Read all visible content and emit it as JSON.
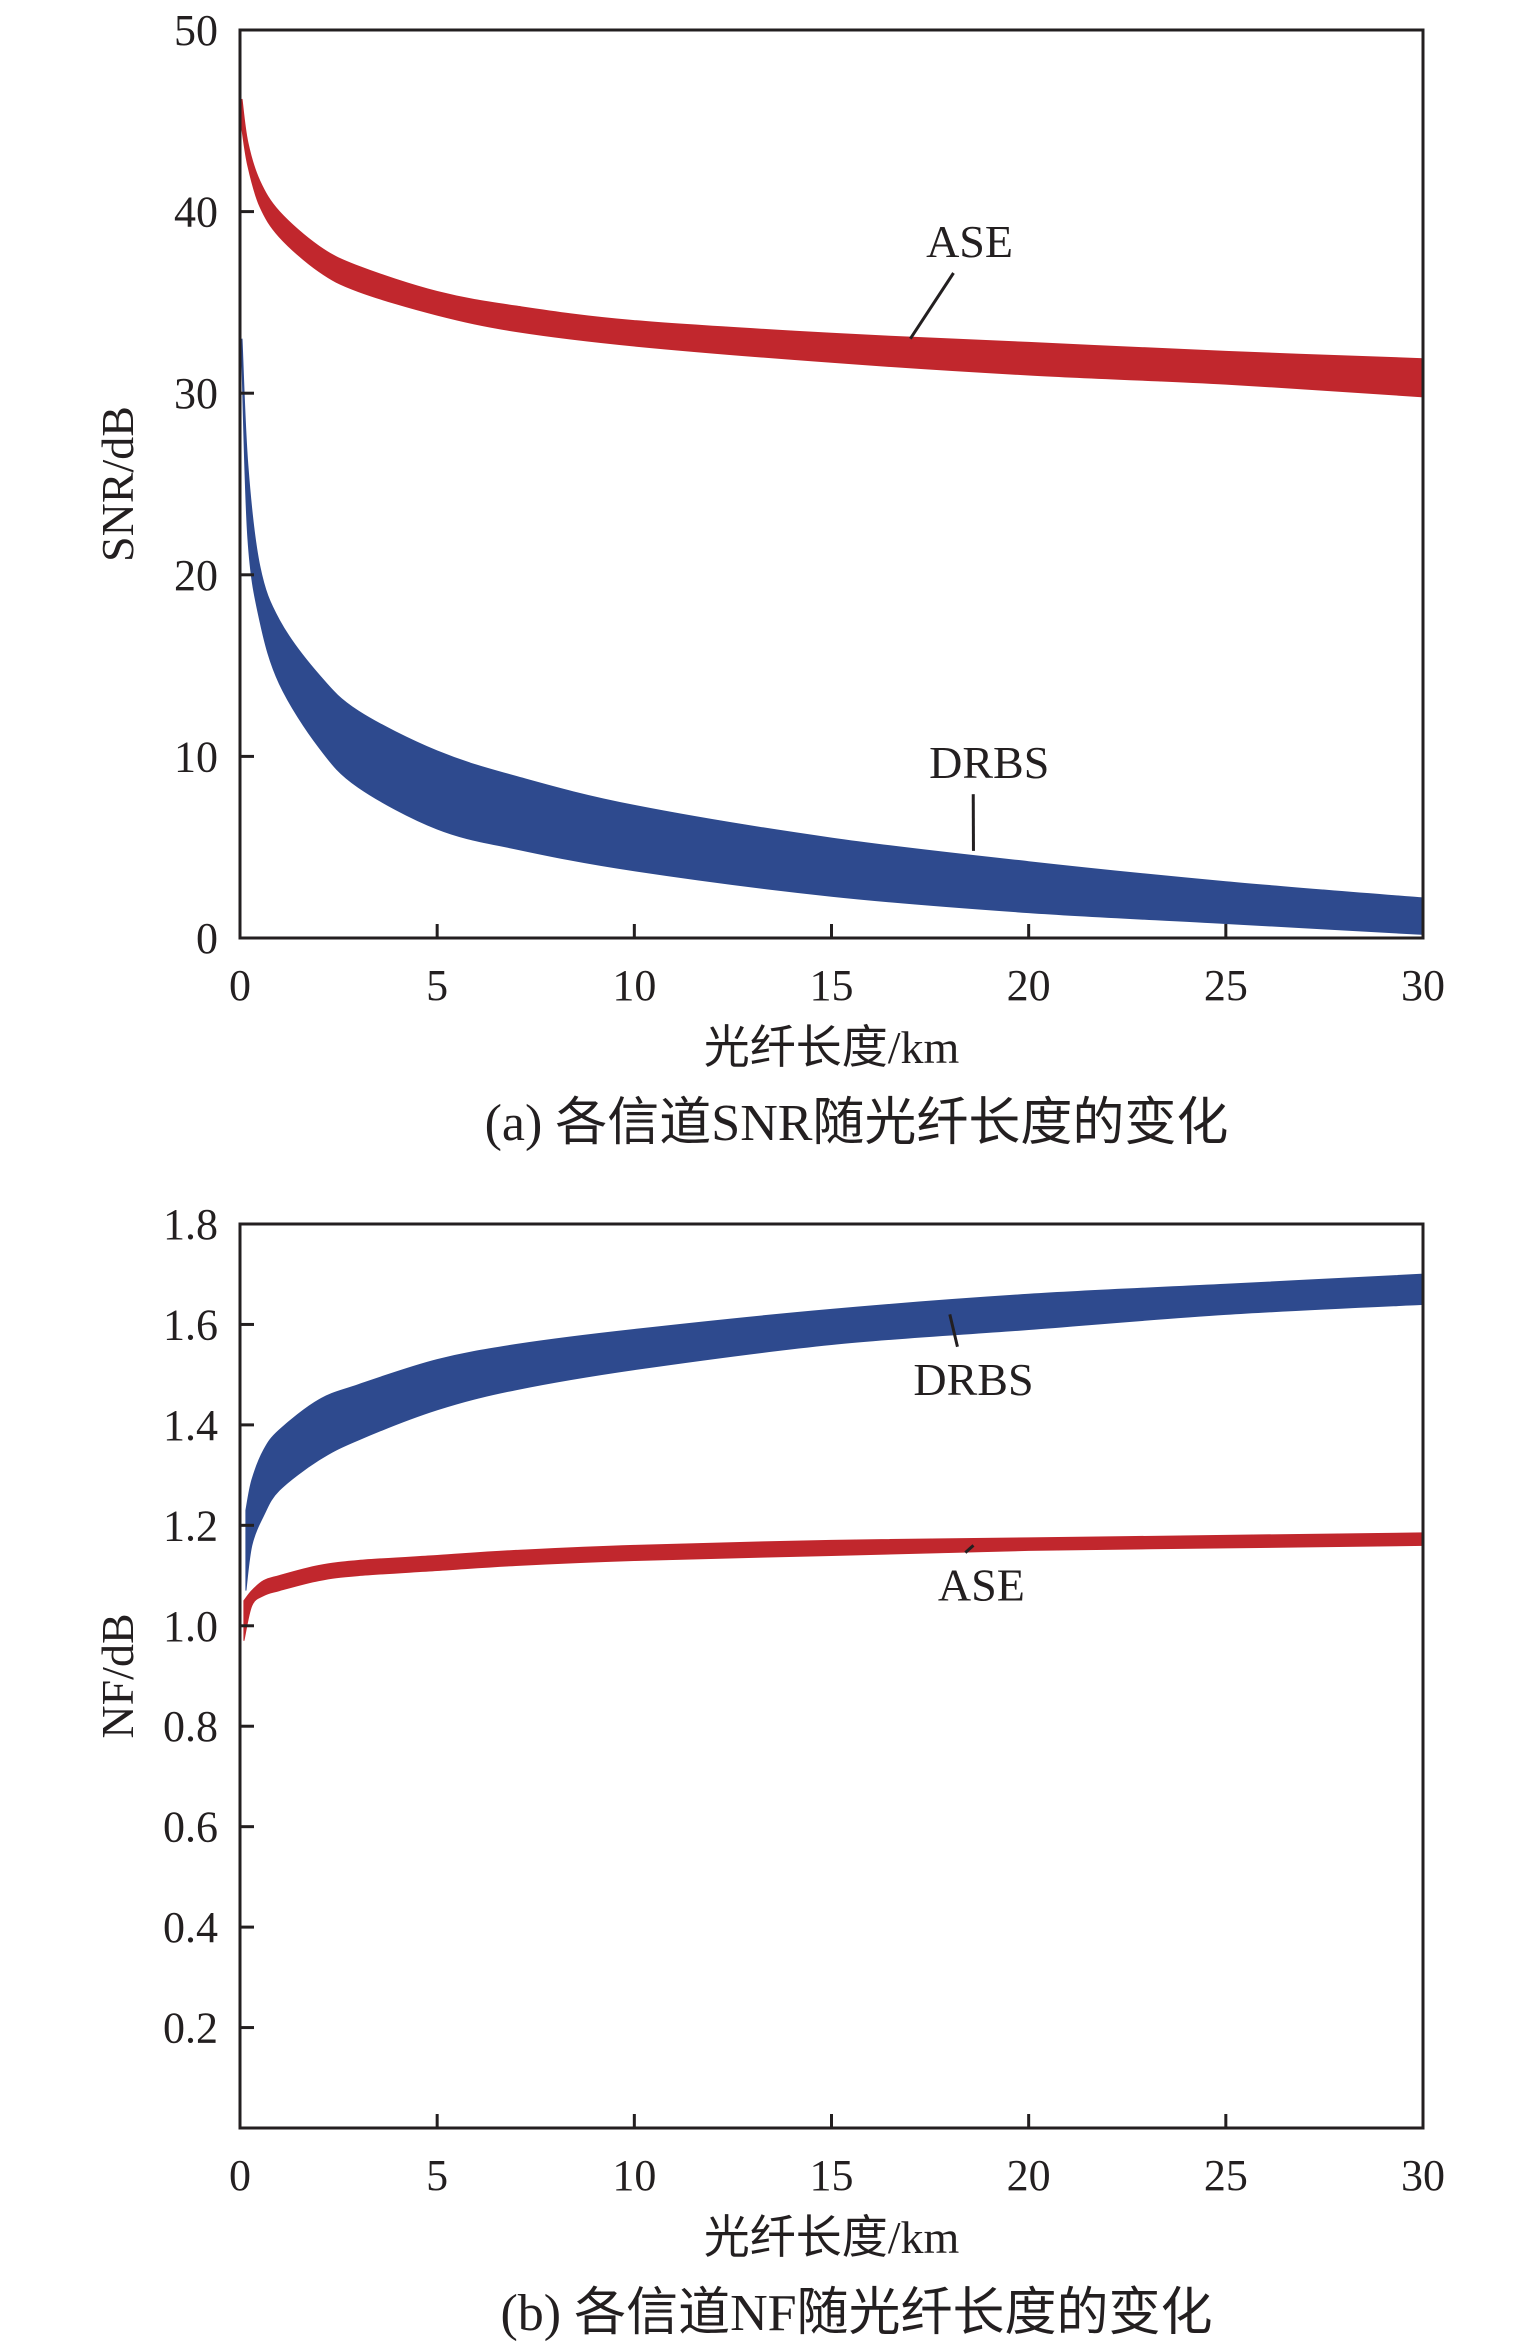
{
  "chart_data": [
    {
      "id": "snr",
      "type": "area",
      "caption": "(a) 各信道SNR随光纤长度的变化",
      "xlabel": "光纤长度/km",
      "ylabel": "SNR/dB",
      "xlim": [
        0,
        30
      ],
      "ylim": [
        0,
        50
      ],
      "xticks": [
        0,
        5,
        10,
        15,
        20,
        25,
        30
      ],
      "yticks": [
        0,
        10,
        20,
        30,
        40,
        50
      ],
      "ytick_labels": [
        "0",
        "10",
        "20",
        "30",
        "40",
        "50"
      ],
      "grid": false,
      "series": [
        {
          "name": "ASE",
          "color": "#c1272d",
          "x": [
            0.05,
            0.2,
            0.5,
            1,
            2,
            3,
            5,
            7,
            10,
            15,
            20,
            25,
            30
          ],
          "upper": [
            46.2,
            43.8,
            41.7,
            40.0,
            38.1,
            37.0,
            35.6,
            34.8,
            34.0,
            33.3,
            32.8,
            32.3,
            31.9
          ],
          "lower": [
            44.5,
            42.5,
            40.3,
            38.6,
            36.7,
            35.6,
            34.3,
            33.4,
            32.6,
            31.7,
            31.0,
            30.5,
            29.8
          ]
        },
        {
          "name": "DRBS",
          "color": "#2e4a8e",
          "x": [
            0.05,
            0.2,
            0.5,
            1,
            2,
            3,
            5,
            7,
            10,
            15,
            20,
            25,
            30
          ],
          "upper": [
            33.0,
            26.0,
            20.5,
            17.5,
            14.5,
            12.5,
            10.3,
            8.9,
            7.3,
            5.5,
            4.2,
            3.1,
            2.2
          ],
          "lower": [
            31.5,
            22.0,
            17.5,
            14.0,
            10.5,
            8.3,
            6.0,
            4.9,
            3.7,
            2.3,
            1.4,
            0.8,
            0.2
          ]
        }
      ],
      "annotations": [
        {
          "text": "ASE",
          "target": [
            17.0,
            33.0
          ],
          "label_at": [
            18.5,
            37.5
          ]
        },
        {
          "text": "DRBS",
          "target": [
            18.6,
            4.8
          ],
          "label_at": [
            19.0,
            8.8
          ]
        }
      ]
    },
    {
      "id": "nf",
      "type": "area",
      "caption": "(b) 各信道NF随光纤长度的变化",
      "xlabel": "光纤长度/km",
      "ylabel": "NF/dB",
      "xlim": [
        0,
        30
      ],
      "ylim": [
        0,
        1.8
      ],
      "xticks": [
        0,
        5,
        10,
        15,
        20,
        25,
        30
      ],
      "yticks": [
        0.2,
        0.4,
        0.6,
        0.8,
        1.0,
        1.2,
        1.4,
        1.6,
        1.8
      ],
      "ytick_labels": [
        "0.2",
        "0.4",
        "0.6",
        "0.8",
        "1.0",
        "1.2",
        "1.4",
        "1.6",
        "1.8"
      ],
      "grid": false,
      "series": [
        {
          "name": "DRBS",
          "color": "#2e4a8e",
          "x": [
            0.15,
            0.3,
            0.6,
            1,
            2,
            3,
            5,
            7,
            10,
            15,
            20,
            25,
            30
          ],
          "upper": [
            1.23,
            1.29,
            1.35,
            1.39,
            1.45,
            1.48,
            1.53,
            1.56,
            1.59,
            1.63,
            1.66,
            1.68,
            1.7
          ],
          "lower": [
            1.07,
            1.16,
            1.22,
            1.27,
            1.33,
            1.37,
            1.43,
            1.47,
            1.51,
            1.56,
            1.59,
            1.62,
            1.64
          ]
        },
        {
          "name": "ASE",
          "color": "#c1272d",
          "x": [
            0.1,
            0.3,
            0.6,
            1,
            2,
            3,
            5,
            7,
            10,
            15,
            20,
            25,
            30
          ],
          "upper": [
            1.05,
            1.07,
            1.09,
            1.1,
            1.12,
            1.13,
            1.14,
            1.15,
            1.16,
            1.17,
            1.175,
            1.18,
            1.185
          ],
          "lower": [
            0.97,
            1.04,
            1.06,
            1.07,
            1.09,
            1.1,
            1.11,
            1.12,
            1.13,
            1.14,
            1.15,
            1.155,
            1.16
          ]
        }
      ],
      "annotations": [
        {
          "text": "DRBS",
          "target": [
            18.0,
            1.62
          ],
          "label_at": [
            18.6,
            1.46
          ]
        },
        {
          "text": "ASE",
          "target": [
            18.6,
            1.16
          ],
          "label_at": [
            18.8,
            1.05
          ]
        }
      ]
    }
  ]
}
